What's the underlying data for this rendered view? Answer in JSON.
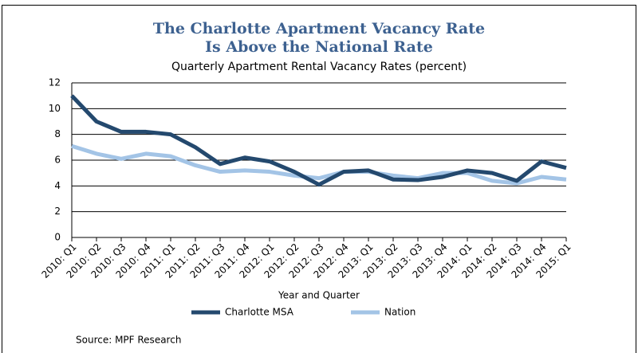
{
  "chart_data": {
    "type": "line",
    "title_lines": [
      "The Charlotte Apartment Vacancy Rate",
      "Is Above the National Rate"
    ],
    "subtitle": "Quarterly Apartment Rental Vacancy Rates (percent)",
    "x_label": "Year and Quarter",
    "source": "Source: MPF Research",
    "categories": [
      "2010: Q1",
      "2010: Q2",
      "2010: Q3",
      "2010: Q4",
      "2011: Q1",
      "2011: Q2",
      "2011: Q3",
      "2011: Q4",
      "2012: Q1",
      "2012: Q2",
      "2012: Q3",
      "2012: Q4",
      "2013: Q1",
      "2013: Q2",
      "2013: Q3",
      "2013: Q4",
      "2014: Q1",
      "2014: Q2",
      "2014: Q3",
      "2014: Q4",
      "2015: Q1"
    ],
    "series": [
      {
        "name": "Charlotte MSA",
        "color": "#24496e",
        "values": [
          11.0,
          9.0,
          8.2,
          8.2,
          8.0,
          7.0,
          5.7,
          6.2,
          5.9,
          5.1,
          4.1,
          5.1,
          5.2,
          4.5,
          4.45,
          4.7,
          5.2,
          5.0,
          4.4,
          5.9,
          5.4
        ]
      },
      {
        "name": "Nation",
        "color": "#a3c4e6",
        "values": [
          7.1,
          6.5,
          6.1,
          6.5,
          6.3,
          5.6,
          5.1,
          5.2,
          5.1,
          4.8,
          4.6,
          5.1,
          5.1,
          4.8,
          4.6,
          5.0,
          5.0,
          4.4,
          4.2,
          4.7,
          4.5
        ]
      }
    ],
    "ylim": [
      0,
      12
    ],
    "yticks": [
      0,
      2,
      4,
      6,
      8,
      10,
      12
    ],
    "grid": true
  }
}
